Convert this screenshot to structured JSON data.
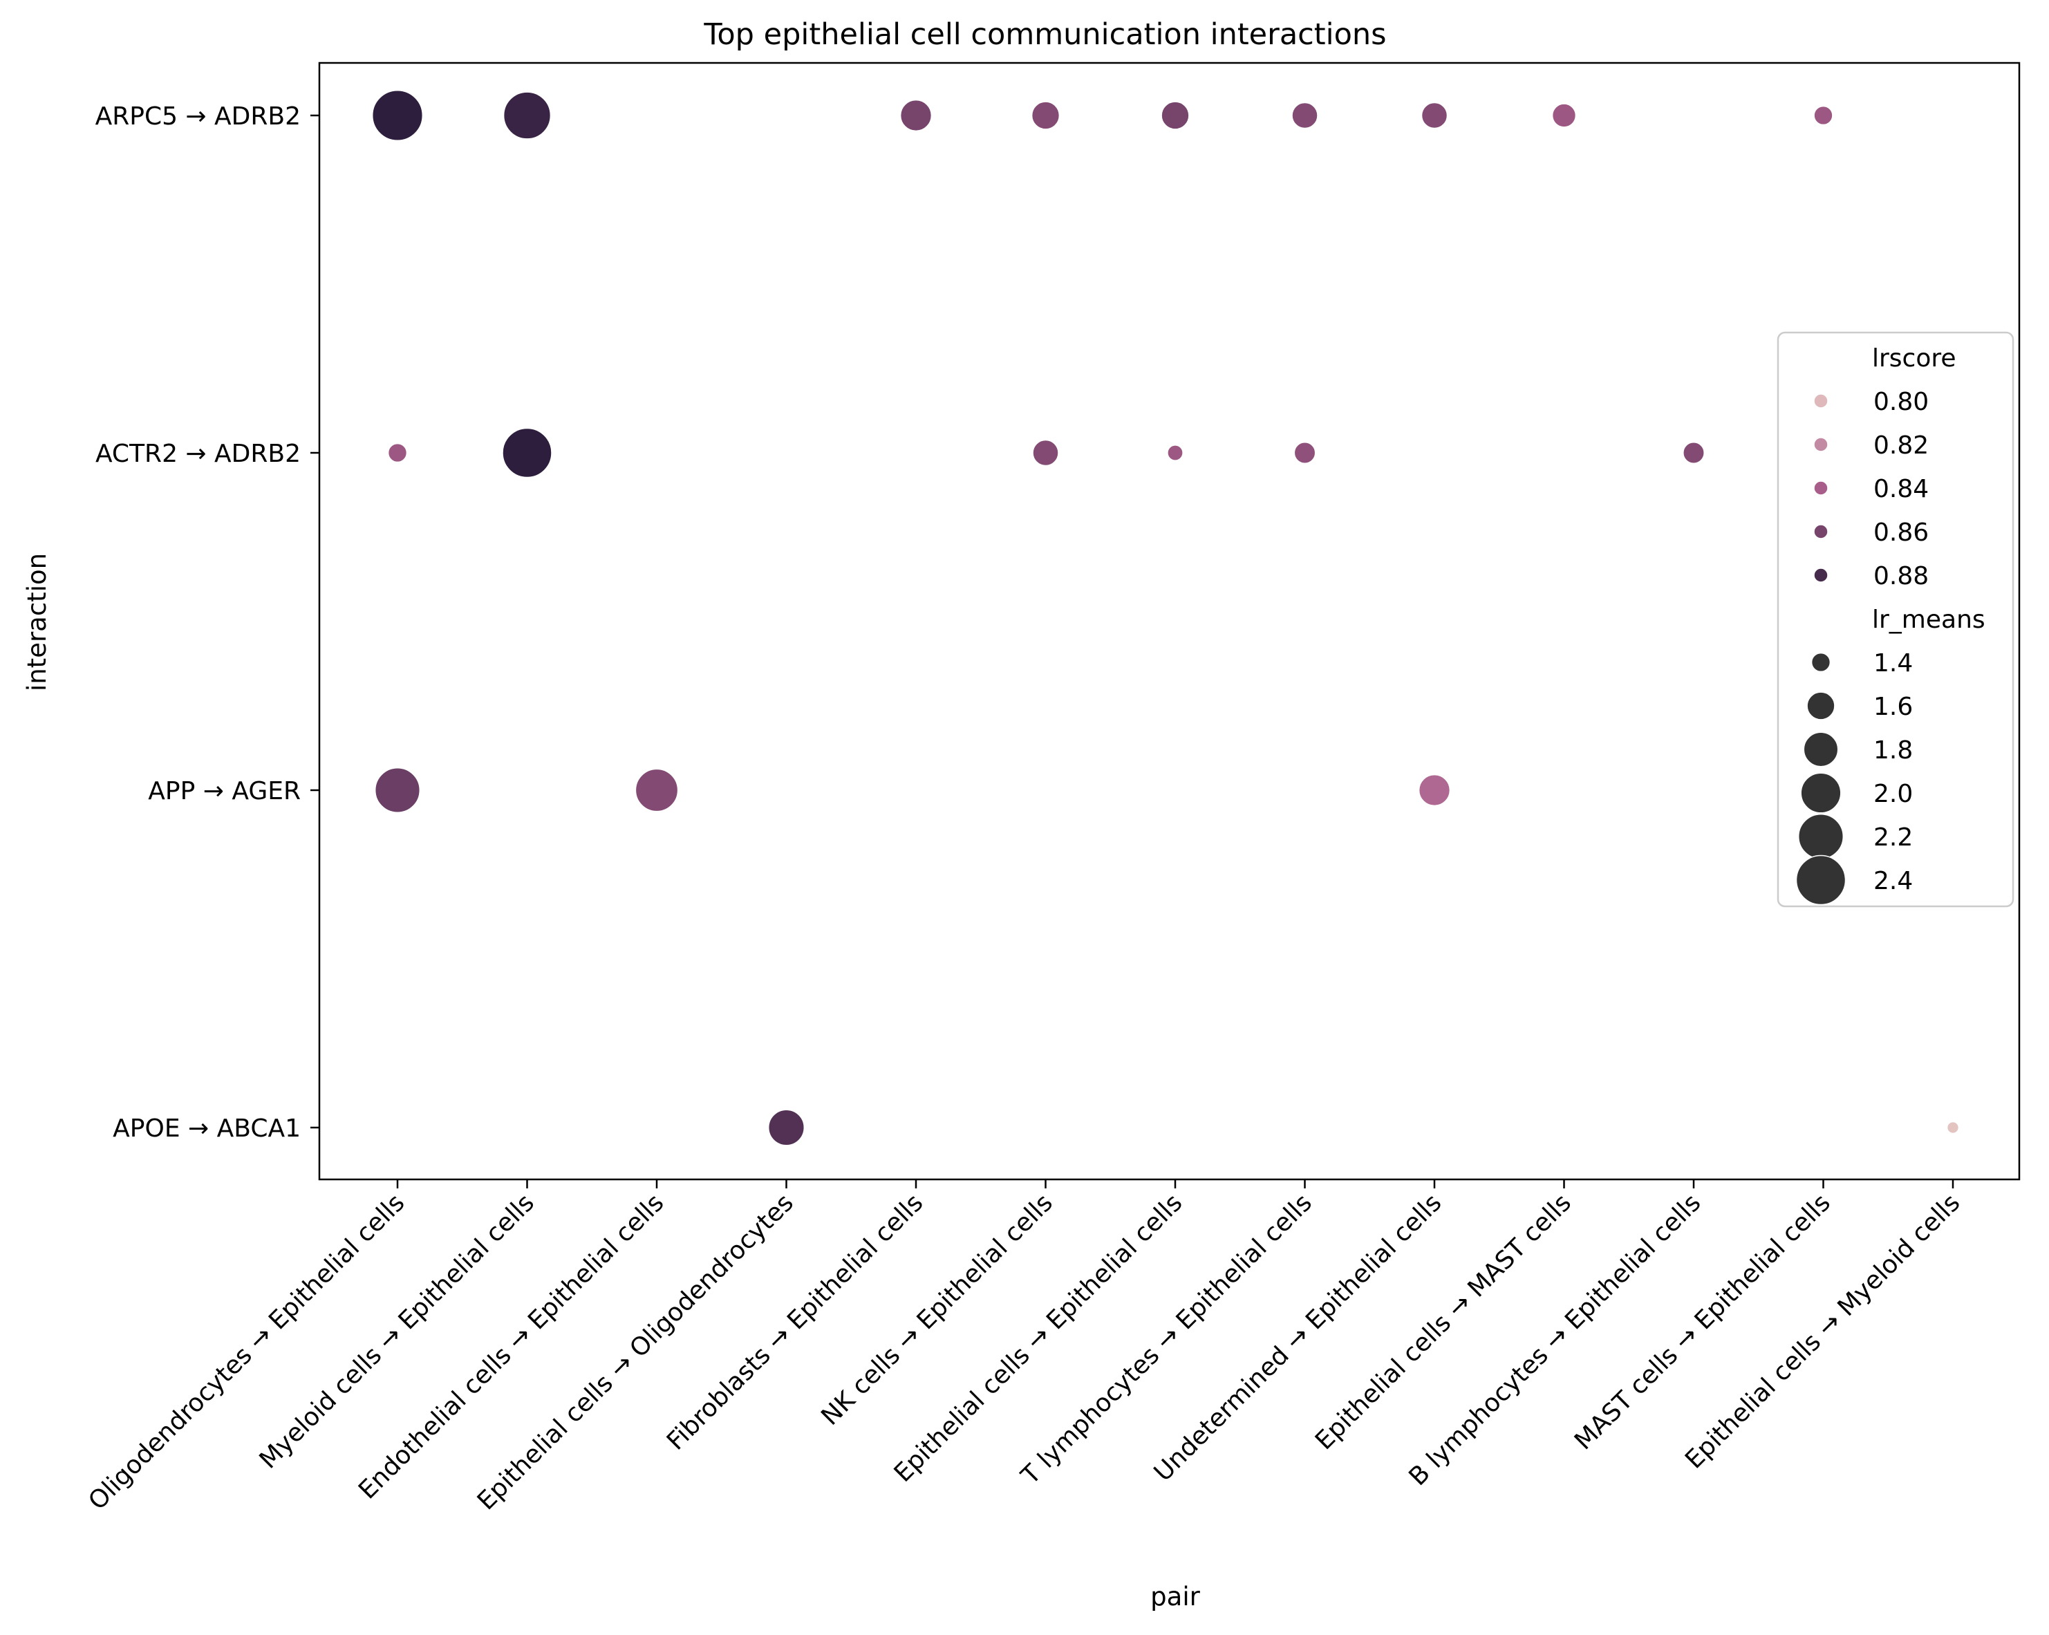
{
  "chart_data": {
    "type": "scatter",
    "title": "Top epithelial cell communication interactions",
    "xlabel": "pair",
    "ylabel": "interaction",
    "x_categories": [
      "Oligodendrocytes → Epithelial cells",
      "Myeloid cells → Epithelial cells",
      "Endothelial cells → Epithelial cells",
      "Epithelial cells → Oligodendrocytes",
      "Fibroblasts → Epithelial cells",
      "NK cells → Epithelial cells",
      "Epithelial cells → Epithelial cells",
      "T lymphocytes → Epithelial cells",
      "Undetermined → Epithelial cells",
      "Epithelial cells → MAST cells",
      "B lymphocytes → Epithelial cells",
      "MAST cells → Epithelial cells",
      "Epithelial cells → Myeloid cells"
    ],
    "y_categories": [
      "ARPC5 → ADRB2",
      "ACTR2 → ADRB2",
      "APP → AGER",
      "APOE → ABCA1"
    ],
    "points": [
      {
        "x": "Oligodendrocytes → Epithelial cells",
        "y": "ARPC5 → ADRB2",
        "lrscore": 0.89,
        "lr_means": 2.45
      },
      {
        "x": "Myeloid cells → Epithelial cells",
        "y": "ARPC5 → ADRB2",
        "lrscore": 0.885,
        "lr_means": 2.3
      },
      {
        "x": "Fibroblasts → Epithelial cells",
        "y": "ARPC5 → ADRB2",
        "lrscore": 0.86,
        "lr_means": 1.7
      },
      {
        "x": "NK cells → Epithelial cells",
        "y": "ARPC5 → ADRB2",
        "lrscore": 0.855,
        "lr_means": 1.6
      },
      {
        "x": "Epithelial cells → Epithelial cells",
        "y": "ARPC5 → ADRB2",
        "lrscore": 0.86,
        "lr_means": 1.6
      },
      {
        "x": "T lymphocytes → Epithelial cells",
        "y": "ARPC5 → ADRB2",
        "lrscore": 0.855,
        "lr_means": 1.55
      },
      {
        "x": "Undetermined → Epithelial cells",
        "y": "ARPC5 → ADRB2",
        "lrscore": 0.855,
        "lr_means": 1.55
      },
      {
        "x": "Epithelial cells → MAST cells",
        "y": "ARPC5 → ADRB2",
        "lrscore": 0.845,
        "lr_means": 1.5
      },
      {
        "x": "MAST cells → Epithelial cells",
        "y": "ARPC5 → ADRB2",
        "lrscore": 0.845,
        "lr_means": 1.4
      },
      {
        "x": "Oligodendrocytes → Epithelial cells",
        "y": "ACTR2 → ADRB2",
        "lrscore": 0.845,
        "lr_means": 1.4
      },
      {
        "x": "Myeloid cells → Epithelial cells",
        "y": "ACTR2 → ADRB2",
        "lrscore": 0.89,
        "lr_means": 2.4
      },
      {
        "x": "NK cells → Epithelial cells",
        "y": "ACTR2 → ADRB2",
        "lrscore": 0.855,
        "lr_means": 1.55
      },
      {
        "x": "Epithelial cells → Epithelial cells",
        "y": "ACTR2 → ADRB2",
        "lrscore": 0.845,
        "lr_means": 1.35
      },
      {
        "x": "T lymphocytes → Epithelial cells",
        "y": "ACTR2 → ADRB2",
        "lrscore": 0.85,
        "lr_means": 1.45
      },
      {
        "x": "B lymphocytes → Epithelial cells",
        "y": "ACTR2 → ADRB2",
        "lrscore": 0.855,
        "lr_means": 1.45
      },
      {
        "x": "Oligodendrocytes → Epithelial cells",
        "y": "APP → AGER",
        "lrscore": 0.865,
        "lr_means": 2.2
      },
      {
        "x": "Endothelial cells → Epithelial cells",
        "y": "APP → AGER",
        "lrscore": 0.855,
        "lr_means": 2.1
      },
      {
        "x": "Undetermined → Epithelial cells",
        "y": "APP → AGER",
        "lrscore": 0.835,
        "lr_means": 1.7
      },
      {
        "x": "Epithelial cells → Oligodendrocytes",
        "y": "APOE → ABCA1",
        "lrscore": 0.875,
        "lr_means": 1.85
      },
      {
        "x": "Epithelial cells → Myeloid cells",
        "y": "APOE → ABCA1",
        "lrscore": 0.795,
        "lr_means": 1.3
      }
    ],
    "legend": {
      "position": "right",
      "hue_title": "lrscore",
      "hue_entries": [
        {
          "label": "0.80",
          "value": 0.8
        },
        {
          "label": "0.82",
          "value": 0.82
        },
        {
          "label": "0.84",
          "value": 0.84
        },
        {
          "label": "0.86",
          "value": 0.86
        },
        {
          "label": "0.88",
          "value": 0.88
        }
      ],
      "size_title": "lr_means",
      "size_entries": [
        {
          "label": "1.4",
          "value": 1.4
        },
        {
          "label": "1.6",
          "value": 1.6
        },
        {
          "label": "1.8",
          "value": 1.8
        },
        {
          "label": "2.0",
          "value": 2.0
        },
        {
          "label": "2.2",
          "value": 2.2
        },
        {
          "label": "2.4",
          "value": 2.4
        }
      ]
    },
    "colors": {
      "hue_low": "#ebcfc6",
      "hue_mid": "#a85d8b",
      "hue_high": "#2d1e3e",
      "size_swatch": "#333333"
    },
    "grid": false
  }
}
